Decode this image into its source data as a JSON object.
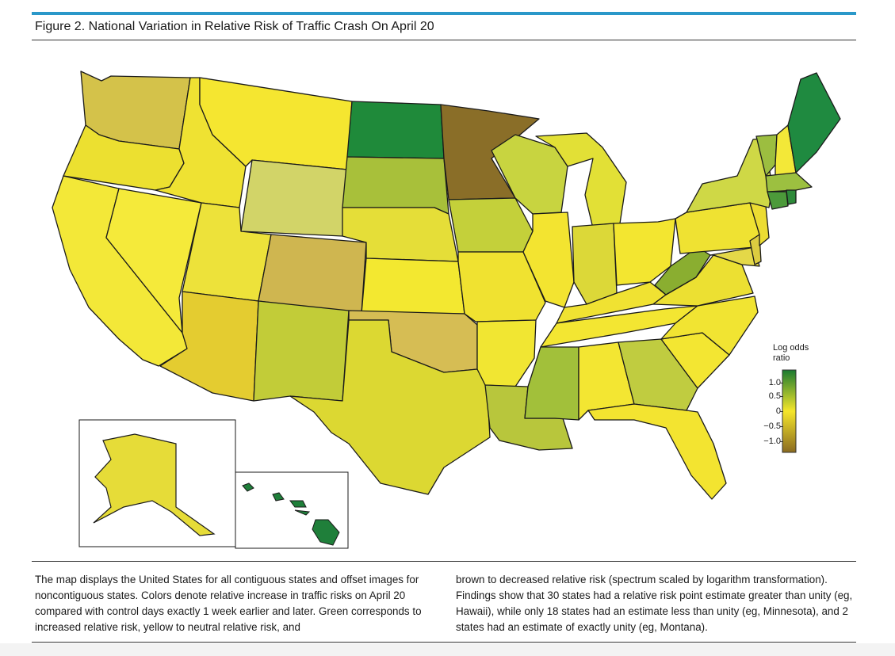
{
  "figure": {
    "title": "Figure 2. National Variation in Relative Risk of Traffic Crash On April 20",
    "caption_left": "The map displays the United States for all contiguous states and offset images for noncontiguous states. Colors denote relative increase in traffic risks on April 20 compared with control days exactly 1 week earlier and later. Green corresponds to increased relative risk, yellow to neutral relative risk, and",
    "caption_right": "brown to decreased relative risk (spectrum scaled by logarithm transformation). Findings show that 30 states had a relative risk point estimate greater than unity (eg, Hawaii), while only 18 states had an estimate less than unity (eg, Minnesota), and 2 states had an estimate of exactly unity (eg, Montana)."
  },
  "legend": {
    "title_line1": "Log odds",
    "title_line2": "ratio",
    "ticks": [
      "1.0",
      "0.5",
      "0",
      "−0.5",
      "−1.0"
    ],
    "colors": {
      "high": "#1a7a30",
      "mid": "#f5e62a",
      "low": "#8a6a20"
    }
  },
  "map_colors": {
    "WA": "#d4c24a",
    "OR": "#ece030",
    "CA": "#f3e838",
    "ID": "#efe232",
    "NV": "#f5ea3a",
    "MT": "#f5e630",
    "WY": "#d2d468",
    "UT": "#ede23a",
    "AZ": "#e4cc30",
    "CO": "#cfb650",
    "NM": "#c2cc38",
    "ND": "#1f8a3a",
    "SD": "#a8c03a",
    "NE": "#e5de38",
    "KS": "#f3e830",
    "OK": "#d6bd54",
    "TX": "#dcd832",
    "MN": "#8a6e28",
    "IA": "#c4d03a",
    "MO": "#f0e230",
    "AR": "#f1e632",
    "LA": "#b8c63c",
    "WI": "#c8d440",
    "IL": "#f3e430",
    "MS": "#a2c03a",
    "MI": "#e2e036",
    "IN": "#dcd838",
    "OH": "#f3e630",
    "KY": "#f0e232",
    "TN": "#f3e632",
    "AL": "#f3e632",
    "GA": "#c0cc40",
    "FL": "#f3e430",
    "SC": "#f3e632",
    "NC": "#f1e432",
    "VA": "#ece032",
    "WV": "#8aae30",
    "PA": "#efe232",
    "NY": "#cfd846",
    "VT": "#9cbe40",
    "NH": "#f3e838",
    "ME": "#1f8a40",
    "MA": "#9cc040",
    "CT": "#4c9a3a",
    "RI": "#2e8a3a",
    "NJ": "#ecdc32",
    "DE": "#dccc40",
    "MD": "#e4d848",
    "AK": "#e6dc38",
    "HI": "#1f7f3a"
  }
}
